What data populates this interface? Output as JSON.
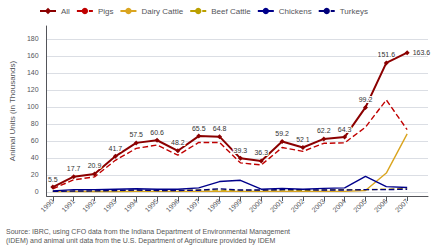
{
  "chart_data": {
    "type": "line",
    "x": [
      1990,
      1991,
      1992,
      1993,
      1994,
      1995,
      1996,
      1997,
      1998,
      1999,
      2000,
      2001,
      2002,
      2003,
      2004,
      2005,
      2006,
      2007
    ],
    "xlim": [
      1989.7,
      2008.0
    ],
    "xticks": [
      1990,
      1991,
      1992,
      1993,
      1994,
      1995,
      1996,
      1997,
      1998,
      1999,
      2000,
      2001,
      2002,
      2003,
      2004,
      2005,
      2006,
      2007
    ],
    "ylabel": "Animal Units (in Thousands)",
    "ylim": [
      -5,
      195
    ],
    "yticks": [
      0,
      20,
      40,
      60,
      80,
      100,
      120,
      140,
      160,
      180
    ],
    "grid": true,
    "legend": "upper left",
    "annotations": [
      "Source: IBRC, using CFO data from the Indiana Department of Environmental Management",
      "(IDEM) and animal unit data from the U.S. Department of Agriculture provided by IDEM"
    ],
    "series": [
      {
        "name": "All",
        "color": "#8B0000",
        "marker": "diamond",
        "line_style": "solid",
        "data_labels": true,
        "values": [
          5.5,
          17.7,
          20.9,
          41.7,
          57.5,
          60.6,
          48.2,
          65.5,
          64.8,
          39.3,
          36.3,
          59.2,
          52.1,
          62.2,
          64.3,
          99.2,
          151.6,
          163.6
        ]
      },
      {
        "name": "Pigs",
        "color": "#C00000",
        "marker": "none",
        "line_style": "dashed",
        "values": [
          3.5,
          14.0,
          17.5,
          37.0,
          51.0,
          55.0,
          43.0,
          58.0,
          58.0,
          34.0,
          31.5,
          52.0,
          47.5,
          57.0,
          57.5,
          76.0,
          108.0,
          73.0
        ]
      },
      {
        "name": "Dairy Cattle",
        "color": "#DAA520",
        "marker": "none",
        "line_style": "solid",
        "values": [
          0.3,
          0.3,
          0.3,
          0.3,
          0.5,
          0.5,
          0.5,
          0.5,
          0.5,
          0.5,
          0.5,
          0.5,
          0.5,
          0.5,
          0.5,
          1.5,
          22.0,
          68.0
        ]
      },
      {
        "name": "Beef Cattle",
        "color": "#BBA000",
        "marker": "none",
        "line_style": "dashed",
        "values": [
          0.5,
          0.5,
          0.5,
          1.0,
          1.5,
          1.0,
          1.5,
          2.0,
          2.0,
          1.5,
          1.5,
          2.0,
          1.5,
          2.0,
          2.5,
          2.5,
          3.0,
          4.0
        ]
      },
      {
        "name": "Chickens",
        "color": "#00008B",
        "marker": "none",
        "line_style": "solid",
        "values": [
          1.0,
          2.5,
          2.5,
          3.0,
          3.5,
          3.0,
          3.0,
          4.5,
          12.0,
          13.5,
          3.0,
          4.0,
          3.0,
          4.0,
          4.5,
          18.0,
          6.0,
          5.0
        ]
      },
      {
        "name": "Turkeys",
        "color": "#00007B",
        "marker": "none",
        "line_style": "dashed",
        "values": [
          0.5,
          0.8,
          1.0,
          1.5,
          2.0,
          1.5,
          1.5,
          1.8,
          3.5,
          2.0,
          2.0,
          2.5,
          2.5,
          2.0,
          2.0,
          2.5,
          2.5,
          3.0
        ]
      }
    ]
  }
}
